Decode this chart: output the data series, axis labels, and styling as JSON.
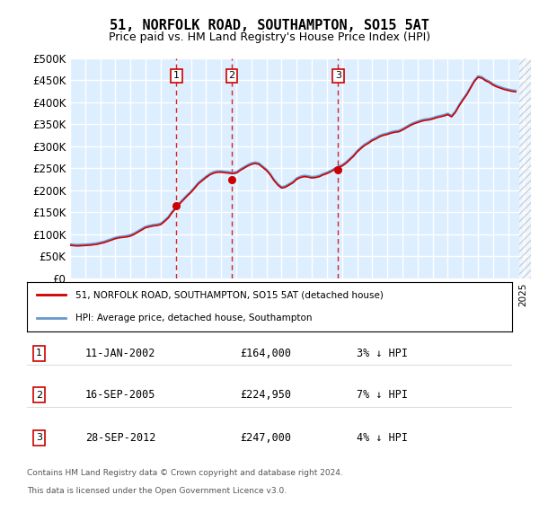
{
  "title": "51, NORFOLK ROAD, SOUTHAMPTON, SO15 5AT",
  "subtitle": "Price paid vs. HM Land Registry's House Price Index (HPI)",
  "ylabel_ticks": [
    "£0",
    "£50K",
    "£100K",
    "£150K",
    "£200K",
    "£250K",
    "£300K",
    "£350K",
    "£400K",
    "£450K",
    "£500K"
  ],
  "ytick_values": [
    0,
    50000,
    100000,
    150000,
    200000,
    250000,
    300000,
    350000,
    400000,
    450000,
    500000
  ],
  "ylim": [
    0,
    500000
  ],
  "xlim_start": 1995.0,
  "xlim_end": 2025.5,
  "bg_color": "#ddeeff",
  "grid_color": "#ffffff",
  "red_line_color": "#cc0000",
  "blue_line_color": "#6699cc",
  "vline_color": "#cc0000",
  "vline1_x": 2002.03,
  "vline2_x": 2005.71,
  "vline3_x": 2012.74,
  "purchase1_x": 2002.03,
  "purchase1_y": 164000,
  "purchase2_x": 2005.71,
  "purchase2_y": 224950,
  "purchase3_x": 2012.74,
  "purchase3_y": 247000,
  "legend_line1": "51, NORFOLK ROAD, SOUTHAMPTON, SO15 5AT (detached house)",
  "legend_line2": "HPI: Average price, detached house, Southampton",
  "table_entries": [
    {
      "num": "1",
      "date": "11-JAN-2002",
      "price": "£164,000",
      "pct": "3% ↓ HPI"
    },
    {
      "num": "2",
      "date": "16-SEP-2005",
      "price": "£224,950",
      "pct": "7% ↓ HPI"
    },
    {
      "num": "3",
      "date": "28-SEP-2012",
      "price": "£247,000",
      "pct": "4% ↓ HPI"
    }
  ],
  "footnote1": "Contains HM Land Registry data © Crown copyright and database right 2024.",
  "footnote2": "This data is licensed under the Open Government Licence v3.0.",
  "hpi_data_x": [
    1995.0,
    1995.25,
    1995.5,
    1995.75,
    1996.0,
    1996.25,
    1996.5,
    1996.75,
    1997.0,
    1997.25,
    1997.5,
    1997.75,
    1998.0,
    1998.25,
    1998.5,
    1998.75,
    1999.0,
    1999.25,
    1999.5,
    1999.75,
    2000.0,
    2000.25,
    2000.5,
    2000.75,
    2001.0,
    2001.25,
    2001.5,
    2001.75,
    2002.0,
    2002.25,
    2002.5,
    2002.75,
    2003.0,
    2003.25,
    2003.5,
    2003.75,
    2004.0,
    2004.25,
    2004.5,
    2004.75,
    2005.0,
    2005.25,
    2005.5,
    2005.75,
    2006.0,
    2006.25,
    2006.5,
    2006.75,
    2007.0,
    2007.25,
    2007.5,
    2007.75,
    2008.0,
    2008.25,
    2008.5,
    2008.75,
    2009.0,
    2009.25,
    2009.5,
    2009.75,
    2010.0,
    2010.25,
    2010.5,
    2010.75,
    2011.0,
    2011.25,
    2011.5,
    2011.75,
    2012.0,
    2012.25,
    2012.5,
    2012.75,
    2013.0,
    2013.25,
    2013.5,
    2013.75,
    2014.0,
    2014.25,
    2014.5,
    2014.75,
    2015.0,
    2015.25,
    2015.5,
    2015.75,
    2016.0,
    2016.25,
    2016.5,
    2016.75,
    2017.0,
    2017.25,
    2017.5,
    2017.75,
    2018.0,
    2018.25,
    2018.5,
    2018.75,
    2019.0,
    2019.25,
    2019.5,
    2019.75,
    2020.0,
    2020.25,
    2020.5,
    2020.75,
    2021.0,
    2021.25,
    2021.5,
    2021.75,
    2022.0,
    2022.25,
    2022.5,
    2022.75,
    2023.0,
    2023.25,
    2023.5,
    2023.75,
    2024.0,
    2024.25,
    2024.5
  ],
  "hpi_data_y": [
    78000,
    77000,
    76500,
    77000,
    77500,
    78000,
    79000,
    80000,
    82000,
    84000,
    87000,
    90000,
    93000,
    95000,
    96000,
    97000,
    99000,
    103000,
    108000,
    113000,
    118000,
    120000,
    122000,
    123000,
    125000,
    132000,
    140000,
    152000,
    162000,
    172000,
    181000,
    190000,
    198000,
    208000,
    218000,
    225000,
    232000,
    238000,
    242000,
    244000,
    244000,
    243000,
    242000,
    241000,
    242000,
    248000,
    253000,
    258000,
    262000,
    264000,
    262000,
    255000,
    248000,
    238000,
    225000,
    215000,
    208000,
    210000,
    215000,
    220000,
    228000,
    232000,
    234000,
    233000,
    231000,
    232000,
    234000,
    238000,
    241000,
    245000,
    250000,
    255000,
    258000,
    264000,
    272000,
    280000,
    290000,
    298000,
    305000,
    310000,
    316000,
    320000,
    325000,
    328000,
    330000,
    333000,
    335000,
    336000,
    340000,
    345000,
    350000,
    354000,
    357000,
    360000,
    362000,
    363000,
    365000,
    368000,
    370000,
    372000,
    375000,
    370000,
    380000,
    395000,
    408000,
    420000,
    435000,
    450000,
    460000,
    458000,
    452000,
    448000,
    442000,
    438000,
    435000,
    432000,
    430000,
    428000,
    427000
  ],
  "red_data_x": [
    1995.0,
    1995.25,
    1995.5,
    1995.75,
    1996.0,
    1996.25,
    1996.5,
    1996.75,
    1997.0,
    1997.25,
    1997.5,
    1997.75,
    1998.0,
    1998.25,
    1998.5,
    1998.75,
    1999.0,
    1999.25,
    1999.5,
    1999.75,
    2000.0,
    2000.25,
    2000.5,
    2000.75,
    2001.0,
    2001.25,
    2001.5,
    2001.75,
    2002.0,
    2002.25,
    2002.5,
    2002.75,
    2003.0,
    2003.25,
    2003.5,
    2003.75,
    2004.0,
    2004.25,
    2004.5,
    2004.75,
    2005.0,
    2005.25,
    2005.5,
    2005.75,
    2006.0,
    2006.25,
    2006.5,
    2006.75,
    2007.0,
    2007.25,
    2007.5,
    2007.75,
    2008.0,
    2008.25,
    2008.5,
    2008.75,
    2009.0,
    2009.25,
    2009.5,
    2009.75,
    2010.0,
    2010.25,
    2010.5,
    2010.75,
    2011.0,
    2011.25,
    2011.5,
    2011.75,
    2012.0,
    2012.25,
    2012.5,
    2012.75,
    2013.0,
    2013.25,
    2013.5,
    2013.75,
    2014.0,
    2014.25,
    2014.5,
    2014.75,
    2015.0,
    2015.25,
    2015.5,
    2015.75,
    2016.0,
    2016.25,
    2016.5,
    2016.75,
    2017.0,
    2017.25,
    2017.5,
    2017.75,
    2018.0,
    2018.25,
    2018.5,
    2018.75,
    2019.0,
    2019.25,
    2019.5,
    2019.75,
    2020.0,
    2020.25,
    2020.5,
    2020.75,
    2021.0,
    2021.25,
    2021.5,
    2021.75,
    2022.0,
    2022.25,
    2022.5,
    2022.75,
    2023.0,
    2023.25,
    2023.5,
    2023.75,
    2024.0,
    2024.25,
    2024.5
  ],
  "red_data_y": [
    75000,
    74000,
    73500,
    74000,
    74500,
    75000,
    76000,
    77000,
    79000,
    81000,
    84000,
    87000,
    90000,
    92000,
    93000,
    94000,
    96000,
    100000,
    105000,
    110000,
    115000,
    117000,
    119000,
    120000,
    122000,
    129000,
    137000,
    149000,
    159000,
    169000,
    178000,
    187000,
    195000,
    205000,
    215000,
    222000,
    229000,
    235000,
    239000,
    241000,
    241000,
    240000,
    239000,
    238000,
    239000,
    245000,
    250000,
    255000,
    259000,
    261000,
    259000,
    252000,
    245000,
    235000,
    222000,
    212000,
    205000,
    207000,
    212000,
    217000,
    225000,
    229000,
    231000,
    230000,
    228000,
    229000,
    231000,
    235000,
    238000,
    242000,
    247000,
    252000,
    255000,
    261000,
    269000,
    277000,
    287000,
    295000,
    302000,
    307000,
    313000,
    317000,
    322000,
    325000,
    327000,
    330000,
    332000,
    333000,
    337000,
    342000,
    347000,
    351000,
    354000,
    357000,
    359000,
    360000,
    362000,
    365000,
    367000,
    369000,
    372000,
    367000,
    377000,
    392000,
    405000,
    417000,
    432000,
    447000,
    457000,
    455000,
    449000,
    445000,
    439000,
    435000,
    432000,
    429000,
    427000,
    425000,
    424000
  ]
}
